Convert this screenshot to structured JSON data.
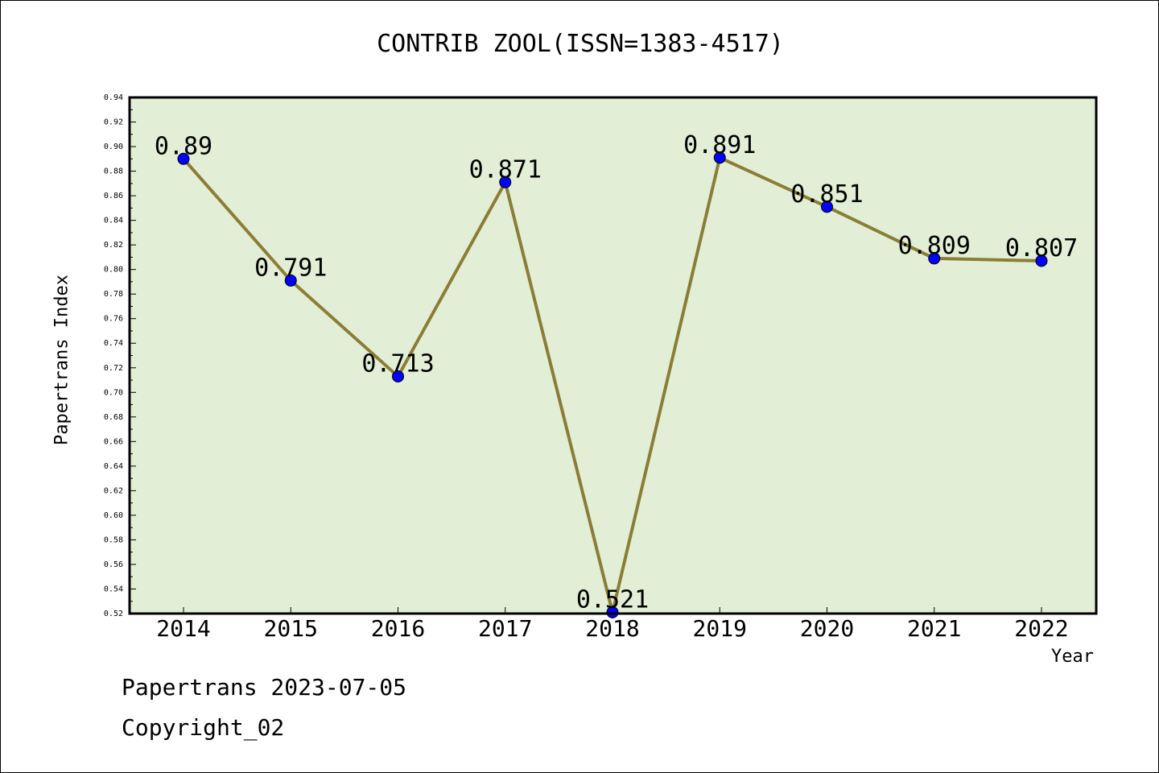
{
  "chart_data": {
    "type": "line",
    "title": "CONTRIB ZOOL(ISSN=1383-4517)",
    "xlabel": "Year",
    "ylabel": "Papertrans Index",
    "categories": [
      "2014",
      "2015",
      "2016",
      "2017",
      "2018",
      "2019",
      "2020",
      "2021",
      "2022"
    ],
    "series": [
      {
        "values": [
          0.89,
          0.791,
          0.713,
          0.871,
          0.521,
          0.891,
          0.851,
          0.809,
          0.807
        ],
        "data_labels": [
          "0.89",
          "0.791",
          "0.713",
          "0.871",
          "0.521",
          "0.891",
          "0.851",
          "0.809",
          "0.807"
        ]
      }
    ],
    "ylim": [
      0.52,
      0.94
    ],
    "yticks": [
      "0.52",
      "0.54",
      "0.56",
      "0.58",
      "0.60",
      "0.62",
      "0.64",
      "0.66",
      "0.68",
      "0.70",
      "0.72",
      "0.74",
      "0.76",
      "0.78",
      "0.80",
      "0.82",
      "0.84",
      "0.86",
      "0.88",
      "0.90",
      "0.92",
      "0.94"
    ],
    "grid": false,
    "legend": "none",
    "colors": {
      "plot_background": "#e2efd6",
      "line": "#8b7d35",
      "marker": "#0000ff"
    }
  },
  "footer": {
    "date_text": "Papertrans 2023-07-05",
    "copyright_text": "Copyright_02"
  }
}
